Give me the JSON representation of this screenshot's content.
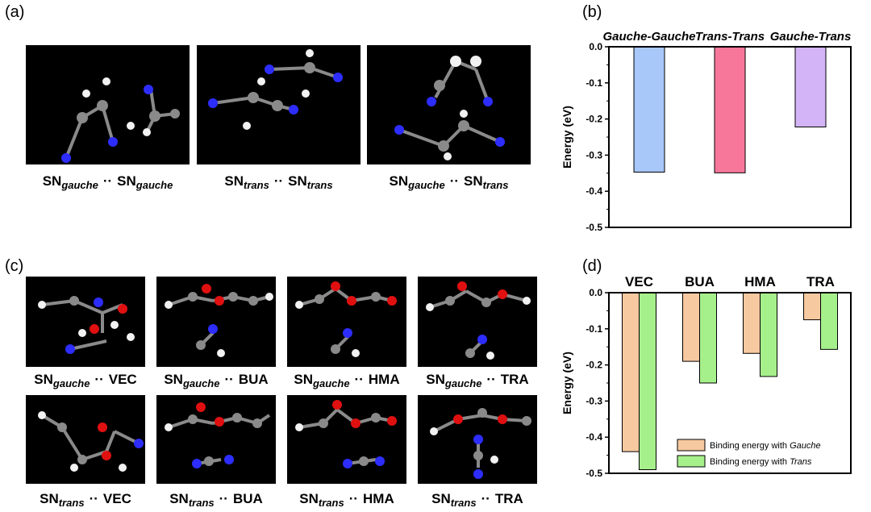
{
  "panels": {
    "a": "(a)",
    "b": "(b)",
    "c": "(c)",
    "d": "(d)"
  },
  "captions_a": [
    {
      "left": "SN",
      "left_sub": "gauche",
      "sep": "··",
      "right": "SN",
      "right_sub": "gauche"
    },
    {
      "left": "SN",
      "left_sub": "trans",
      "sep": "··",
      "right": "SN",
      "right_sub": "trans"
    },
    {
      "left": "SN",
      "left_sub": "gauche",
      "sep": "··",
      "right": "SN",
      "right_sub": "trans"
    }
  ],
  "captions_c_row1": [
    {
      "left": "SN",
      "left_sub": "gauche",
      "sep": "··",
      "right": "VEC"
    },
    {
      "left": "SN",
      "left_sub": "gauche",
      "sep": "··",
      "right": "BUA"
    },
    {
      "left": "SN",
      "left_sub": "gauche",
      "sep": "··",
      "right": "HMA"
    },
    {
      "left": "SN",
      "left_sub": "gauche",
      "sep": "··",
      "right": "TRA"
    }
  ],
  "captions_c_row2": [
    {
      "left": "SN",
      "left_sub": "trans",
      "sep": "··",
      "right": "VEC"
    },
    {
      "left": "SN",
      "left_sub": "trans",
      "sep": "··",
      "right": "BUA"
    },
    {
      "left": "SN",
      "left_sub": "trans",
      "sep": "··",
      "right": "HMA"
    },
    {
      "left": "SN",
      "left_sub": "trans",
      "sep": "··",
      "right": "TRA"
    }
  ],
  "colors": {
    "carbon": "#8a8a8a",
    "nitrogen": "#2d2dff",
    "oxygen": "#e01010",
    "hydrogen": "#f2f2f2",
    "gg": "#a8c8fa",
    "tt": "#f7779b",
    "gt": "#d3b4f6",
    "gauche": "#f7c9a0",
    "trans": "#a6f08c"
  },
  "chart_data": [
    {
      "type": "bar",
      "categories": [
        "Gauche-Gauche",
        "Trans-Trans",
        "Gauche-Trans"
      ],
      "values": [
        -0.347,
        -0.349,
        -0.222
      ],
      "ylabel": "Energy (eV)",
      "ylim": [
        -0.5,
        0.0
      ],
      "yticks": [
        "0.0",
        "-0.1",
        "-0.2",
        "-0.3",
        "-0.4",
        "-0.5"
      ],
      "grid": false
    },
    {
      "type": "bar",
      "categories": [
        "VEC",
        "BUA",
        "HMA",
        "TRA"
      ],
      "series": [
        {
          "name": "Binding energy with Gauche",
          "name_prefix": "Binding energy with ",
          "name_emph": "Gauche",
          "values": [
            -0.44,
            -0.19,
            -0.168,
            -0.075
          ]
        },
        {
          "name": "Binding energy with Trans",
          "name_prefix": "Binding energy with ",
          "name_emph": "Trans",
          "values": [
            -0.49,
            -0.25,
            -0.232,
            -0.157
          ]
        }
      ],
      "ylabel": "Energy (eV)",
      "ylim": [
        -0.5,
        0.0
      ],
      "yticks": [
        "0.0",
        "-0.1",
        "-0.2",
        "-0.3",
        "-0.4",
        "-0.5"
      ],
      "legend": "bottom-right",
      "grid": false
    }
  ]
}
